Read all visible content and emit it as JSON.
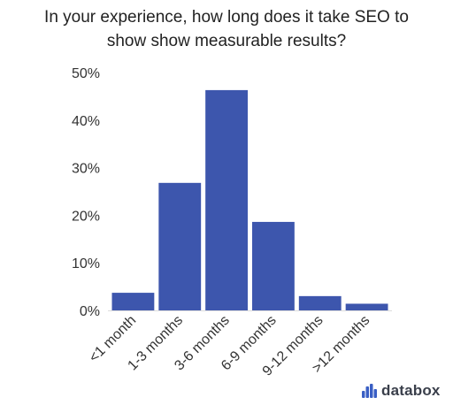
{
  "title_lines": [
    "In your experience, how long does it take SEO to",
    "show show measurable results?"
  ],
  "brand": {
    "name": "databox",
    "icon": "databox-bar-logo-icon",
    "color": "#3a5fc4"
  },
  "chart_data": {
    "type": "bar",
    "title": "In your experience, how long does it take SEO to show show measurable results?",
    "xlabel": "",
    "ylabel": "",
    "categories": [
      "<1 month",
      "1-3 months",
      "3-6 months",
      "6-9 months",
      "9-12 months",
      ">12 months"
    ],
    "values": [
      3.7,
      26.8,
      46.3,
      18.6,
      3.0,
      1.4
    ],
    "unit": "%",
    "ylim": [
      0,
      50
    ],
    "yticks": [
      0,
      10,
      20,
      30,
      40,
      50
    ],
    "ytick_labels": [
      "0%",
      "10%",
      "20%",
      "30%",
      "40%",
      "50%"
    ],
    "bar_color": "#3d56ad",
    "grid": false,
    "legend": "none"
  }
}
